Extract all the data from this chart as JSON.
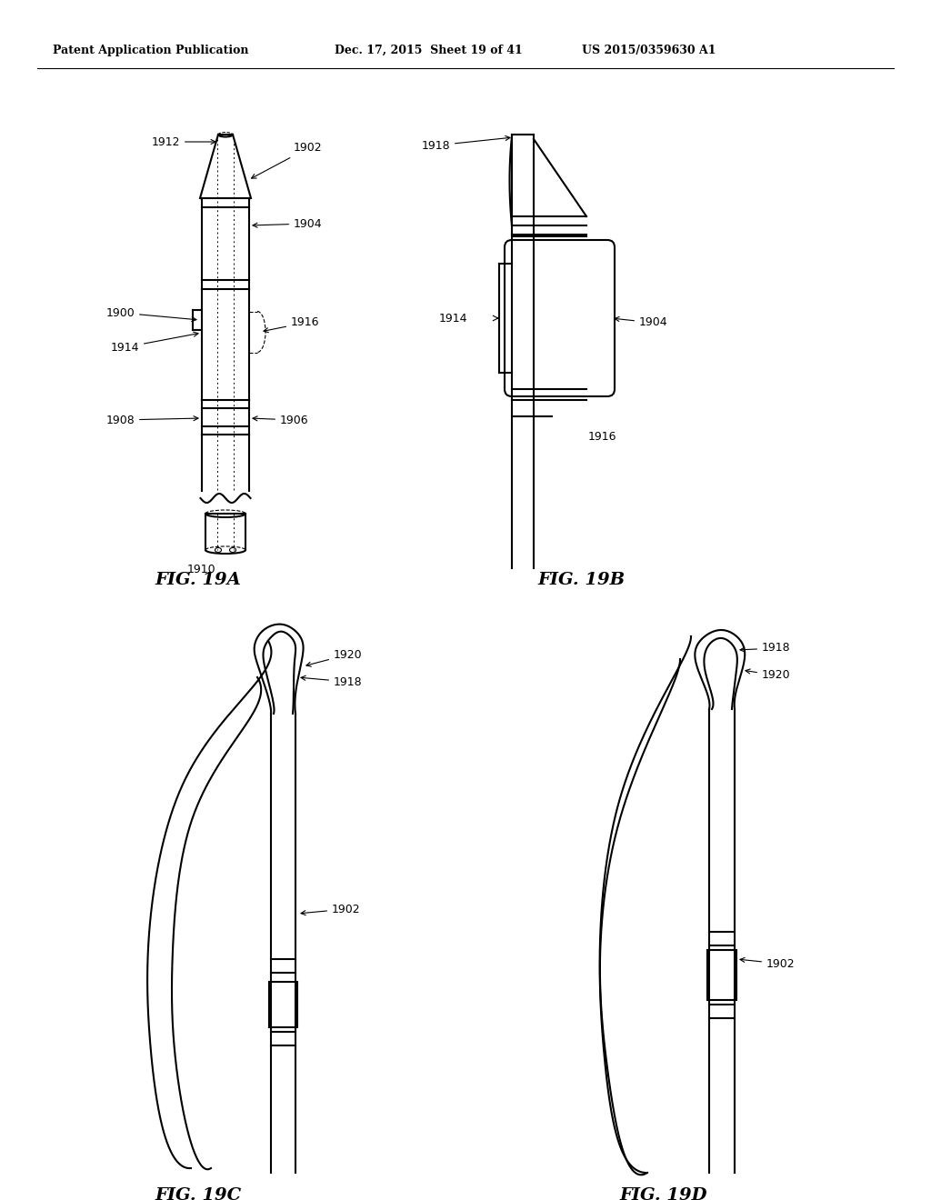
{
  "bg_color": "#ffffff",
  "title_left": "Patent Application Publication",
  "title_mid": "Dec. 17, 2015  Sheet 19 of 41",
  "title_right": "US 2015/0359630 A1",
  "fig19a_label": "FIG. 19A",
  "fig19b_label": "FIG. 19B",
  "fig19c_label": "FIG. 19C",
  "fig19d_label": "FIG. 19D",
  "line_color": "#000000",
  "line_width": 1.5,
  "annotation_fontsize": 9,
  "fig_label_fontsize": 14
}
